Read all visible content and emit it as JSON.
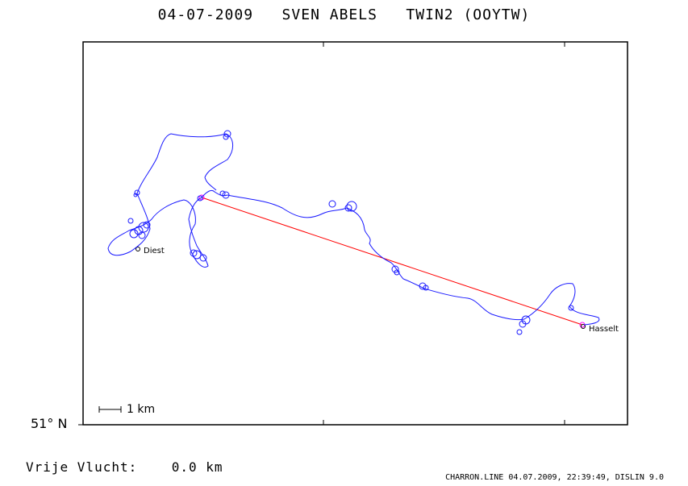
{
  "title": "04-07-2009   SVEN ABELS   TWIN2 (OOYTW)",
  "latitude_label": "51° N",
  "scale_label": "1 km",
  "towns": [
    {
      "name": "Diest"
    },
    {
      "name": "Hasselt"
    }
  ],
  "distance": {
    "label": "Vrije Vlucht:",
    "value": "0.0 km"
  },
  "footer": "CHARRON.LINE 04.07.2009, 22:39:49, DISLIN 9.0",
  "colors": {
    "track": "#1a1aff",
    "task_line": "#ff0000",
    "frame": "#000000"
  }
}
